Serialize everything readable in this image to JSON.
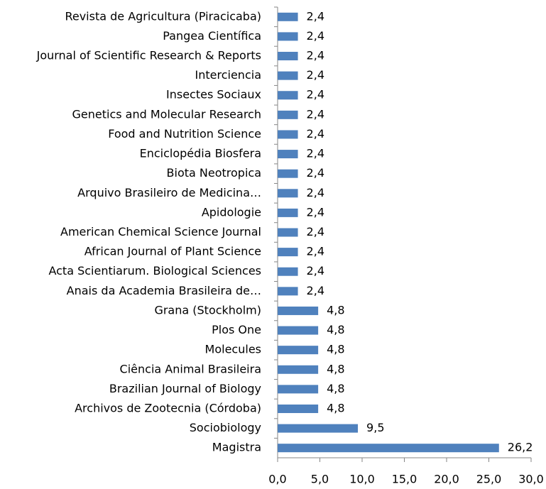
{
  "chart_data": {
    "type": "barh",
    "categories": [
      "Revista de Agricultura (Piracicaba)",
      "Pangea Científica",
      "Journal of Scientific Research & Reports",
      "Interciencia",
      "Insectes Sociaux",
      "Genetics and Molecular Research",
      "Food and Nutrition Science",
      "Enciclopédia Biosfera",
      "Biota Neotropica",
      "Arquivo Brasileiro de Medicina…",
      "Apidologie",
      "American Chemical Science Journal",
      "African Journal of Plant Science",
      "Acta Scientiarum. Biological Sciences",
      "Anais da Academia Brasileira de…",
      "Grana (Stockholm)",
      "Plos One",
      "Molecules",
      "Ciência Animal Brasileira",
      "Brazilian Journal of Biology",
      "Archivos de Zootecnia (Córdoba)",
      "Sociobiology",
      "Magistra"
    ],
    "values": [
      2.4,
      2.4,
      2.4,
      2.4,
      2.4,
      2.4,
      2.4,
      2.4,
      2.4,
      2.4,
      2.4,
      2.4,
      2.4,
      2.4,
      2.4,
      4.8,
      4.8,
      4.8,
      4.8,
      4.8,
      4.8,
      9.5,
      26.2
    ],
    "value_labels": [
      "2,4",
      "2,4",
      "2,4",
      "2,4",
      "2,4",
      "2,4",
      "2,4",
      "2,4",
      "2,4",
      "2,4",
      "2,4",
      "2,4",
      "2,4",
      "2,4",
      "2,4",
      "4,8",
      "4,8",
      "4,8",
      "4,8",
      "4,8",
      "4,8",
      "9,5",
      "26,2"
    ],
    "color": "#4f81bd",
    "xlim": [
      0,
      30
    ],
    "xticks": [
      {
        "value": 0,
        "label": "0,0"
      },
      {
        "value": 5,
        "label": "5,0"
      },
      {
        "value": 10,
        "label": "10,0"
      },
      {
        "value": 15,
        "label": "15,0"
      },
      {
        "value": 20,
        "label": "20,0"
      },
      {
        "value": 25,
        "label": "25,0"
      },
      {
        "value": 30,
        "label": "30,0"
      }
    ]
  }
}
